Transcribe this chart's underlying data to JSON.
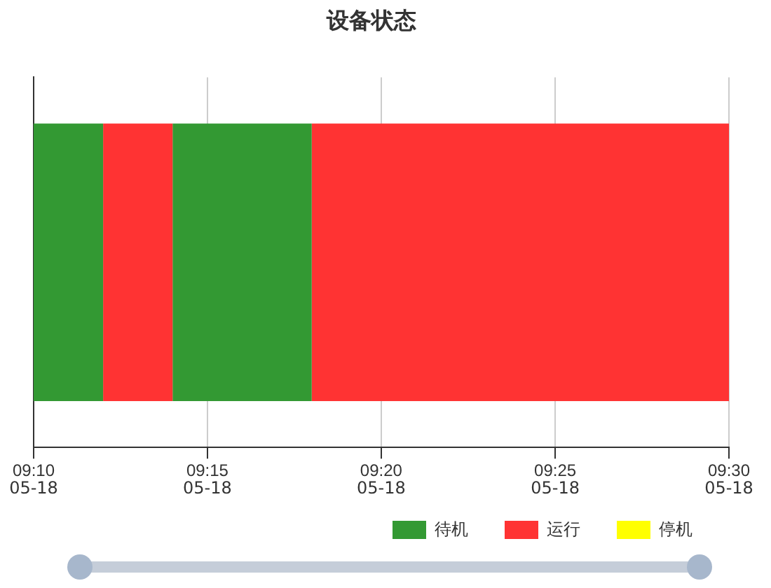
{
  "chart_data": {
    "type": "bar",
    "title": "设备状态",
    "orientation": "horizontal",
    "categories": [
      null
    ],
    "series": [
      {
        "name": "待机",
        "color": "#339933",
        "base": [
          9.1667
        ],
        "values": [
          0.0333
        ]
      },
      {
        "name": "运行",
        "color": "#ff3333",
        "base": [
          9.2
        ],
        "values": [
          0.0333
        ]
      },
      {
        "color": "#339933",
        "base": [
          9.2333
        ],
        "values": [
          0.0667
        ]
      },
      {
        "color": "#ff3333",
        "base": [
          9.3
        ],
        "values": [
          0.2
        ]
      },
      {
        "name": "停机",
        "color": "#ffff00",
        "base": [
          null
        ],
        "values": [
          null
        ]
      }
    ],
    "xlim": [
      9.1667,
      9.5
    ],
    "xticks": [
      {
        "value": 9.1667,
        "label": "09:10"
      },
      {
        "value": 9.25,
        "label": "09:15"
      },
      {
        "value": 9.3333,
        "label": "09:20"
      },
      {
        "value": 9.4167,
        "label": "09:25"
      },
      {
        "value": 9.5,
        "label": "09:30"
      }
    ],
    "annotations": [
      "05-18",
      "05-18",
      "05-18",
      "05-18",
      "05-18"
    ],
    "grid": "x",
    "legend": "bottom right"
  }
}
